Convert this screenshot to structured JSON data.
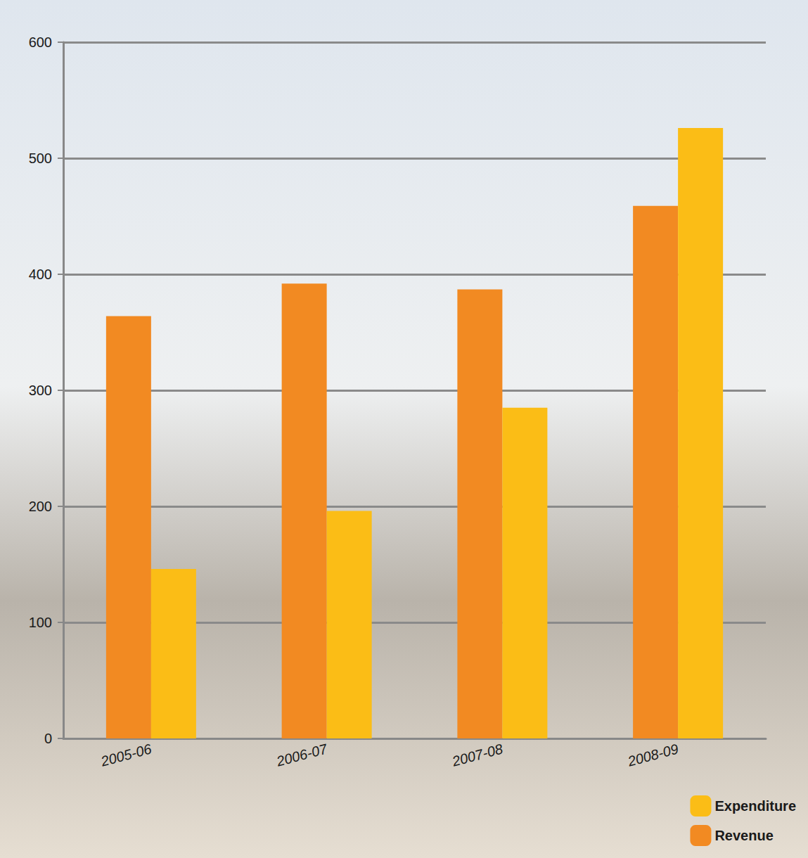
{
  "chart_data": {
    "type": "bar",
    "categories": [
      "2005-06",
      "2006-07",
      "2007-08",
      "2008-09"
    ],
    "series": [
      {
        "name": "Revenue",
        "color": "#f28a22",
        "values": [
          364,
          392,
          387,
          459
        ]
      },
      {
        "name": "Expenditure",
        "color": "#fbbd16",
        "values": [
          146,
          196,
          285,
          526
        ]
      }
    ],
    "ylim": [
      0,
      600
    ],
    "yticks": [
      0,
      100,
      200,
      300,
      400,
      500,
      600
    ],
    "grid": true,
    "legend": "lower right"
  }
}
